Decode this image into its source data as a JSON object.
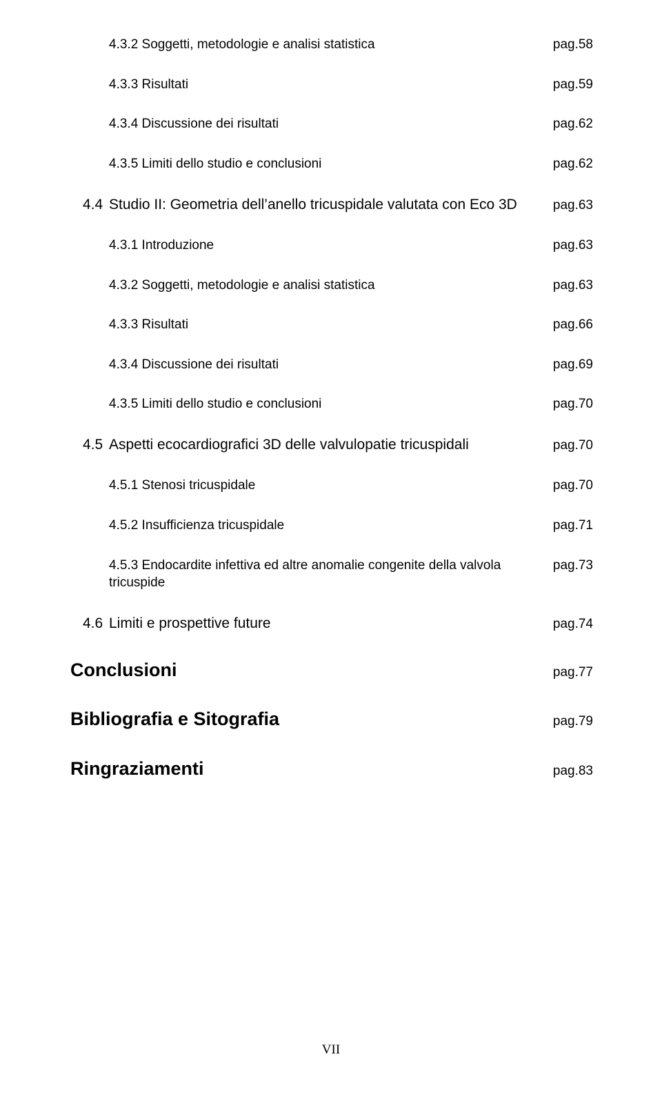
{
  "entries": [
    {
      "level": 3,
      "text": "4.3.2 Soggetti, metodologie e analisi statistica",
      "page": "pag.58"
    },
    {
      "level": 3,
      "text": "4.3.3 Risultati",
      "page": "pag.59"
    },
    {
      "level": 3,
      "text": "4.3.4 Discussione dei risultati",
      "page": "pag.62"
    },
    {
      "level": 3,
      "text": "4.3.5 Limiti dello studio e conclusioni",
      "page": "pag.62"
    },
    {
      "level": 2,
      "num": "4.4",
      "text": "Studio II: Geometria dell’anello tricuspidale valutata con Eco 3D",
      "page": "pag.63"
    },
    {
      "level": 3,
      "text": "4.3.1 Introduzione",
      "page": "pag.63"
    },
    {
      "level": 3,
      "text": "4.3.2 Soggetti, metodologie e analisi statistica",
      "page": "pag.63"
    },
    {
      "level": 3,
      "text": "4.3.3 Risultati",
      "page": "pag.66"
    },
    {
      "level": 3,
      "text": "4.3.4 Discussione dei risultati",
      "page": "pag.69"
    },
    {
      "level": 3,
      "text": "4.3.5 Limiti dello studio e conclusioni",
      "page": "pag.70"
    },
    {
      "level": 2,
      "num": "4.5",
      "text": "Aspetti ecocardiografici 3D delle valvulopatie tricuspidali",
      "page": "pag.70"
    },
    {
      "level": 3,
      "text": "4.5.1 Stenosi tricuspidale",
      "page": "pag.70"
    },
    {
      "level": 3,
      "text": "4.5.2 Insufficienza tricuspidale",
      "page": "pag.71"
    },
    {
      "level": 3,
      "text": "4.5.3 Endocardite infettiva ed altre anomalie congenite della valvola tricuspide",
      "page": "pag.73"
    },
    {
      "level": 2,
      "num": "4.6",
      "text": "Limiti e prospettive future",
      "page": "pag.74"
    },
    {
      "level": 1,
      "text": "Conclusioni",
      "page": "pag.77"
    },
    {
      "level": 1,
      "text": "Bibliografia e Sitografia",
      "page": "pag.79"
    },
    {
      "level": 1,
      "text": "Ringraziamenti",
      "page": "pag.83"
    }
  ],
  "footer": "VII"
}
